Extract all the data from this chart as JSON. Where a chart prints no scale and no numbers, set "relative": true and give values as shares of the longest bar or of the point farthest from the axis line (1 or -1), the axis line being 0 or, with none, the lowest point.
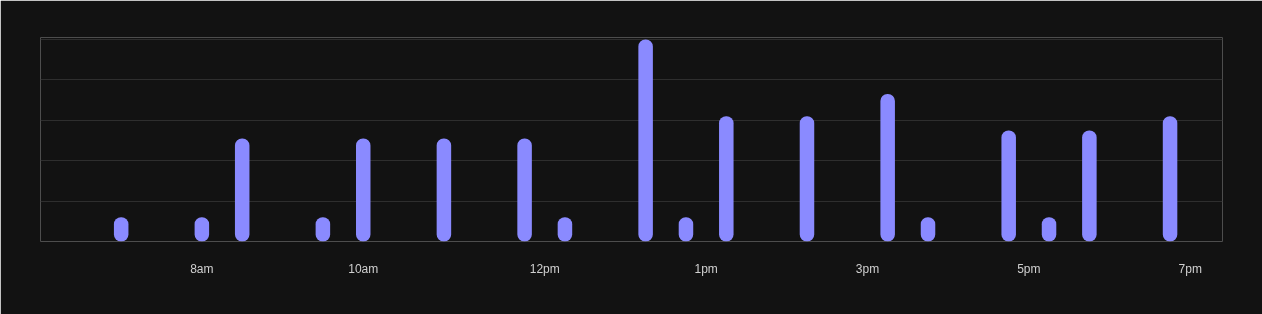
{
  "chart_data": {
    "type": "bar",
    "relative": true,
    "color": "#8a8aff",
    "grid": "y",
    "categories": [
      null,
      null,
      null,
      null,
      "8am",
      null,
      null,
      null,
      null,
      null,
      null,
      null,
      "10am",
      null,
      null,
      null,
      null,
      null,
      null,
      null,
      null,
      "12pm",
      null,
      null,
      null,
      null,
      null,
      null,
      null,
      "1pm",
      null,
      null,
      null,
      null,
      null,
      null,
      null,
      "3pm",
      null,
      null,
      null,
      null,
      null,
      null,
      null,
      "5pm",
      null,
      null,
      null,
      null,
      null,
      null,
      null,
      "7pm",
      null
    ],
    "values": [
      0.12,
      null,
      null,
      null,
      0.12,
      null,
      0.51,
      null,
      null,
      null,
      0.12,
      null,
      0.51,
      null,
      null,
      null,
      0.51,
      null,
      null,
      null,
      0.51,
      null,
      0.12,
      null,
      null,
      null,
      1,
      null,
      0.12,
      null,
      0.62,
      null,
      null,
      null,
      0.62,
      null,
      null,
      null,
      0.73,
      null,
      0.12,
      null,
      null,
      null,
      0.55,
      null,
      0.12,
      null,
      0.55,
      null,
      null,
      null,
      0.62,
      null,
      null
    ]
  }
}
